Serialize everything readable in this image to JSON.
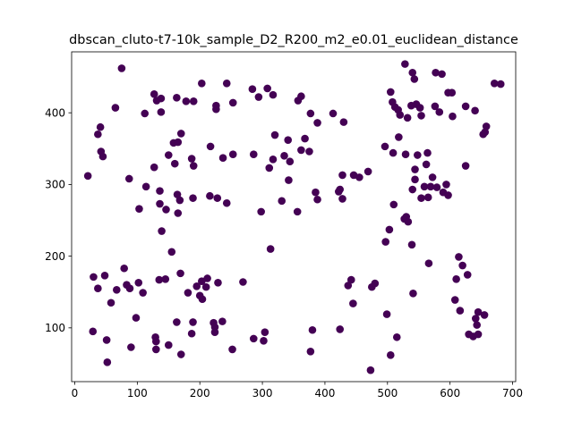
{
  "chart_data": {
    "type": "scatter",
    "title": "dbscan_cluto-t7-10k_sample_D2_R200_m2_e0.01_euclidean_distance",
    "xlabel": "",
    "ylabel": "",
    "xlim": [
      -5,
      705
    ],
    "ylim": [
      25,
      485
    ],
    "xticks": [
      0,
      100,
      200,
      300,
      400,
      500,
      600,
      700
    ],
    "yticks": [
      100,
      200,
      300,
      400
    ],
    "xtick_labels": [
      "0",
      "100",
      "200",
      "300",
      "400",
      "500",
      "600",
      "700"
    ],
    "ytick_labels": [
      "100",
      "200",
      "300",
      "400"
    ],
    "grid": false,
    "legend": "none",
    "marker_color": "#440154",
    "points": [
      [
        75,
        462
      ],
      [
        65,
        407
      ],
      [
        127,
        426
      ],
      [
        131,
        417
      ],
      [
        138,
        420
      ],
      [
        138,
        401
      ],
      [
        112,
        399
      ],
      [
        163,
        421
      ],
      [
        178,
        416
      ],
      [
        190,
        416
      ],
      [
        203,
        441
      ],
      [
        226,
        410
      ],
      [
        226,
        405
      ],
      [
        243,
        441
      ],
      [
        253,
        414
      ],
      [
        284,
        433
      ],
      [
        294,
        422
      ],
      [
        308,
        434
      ],
      [
        317,
        425
      ],
      [
        357,
        417
      ],
      [
        362,
        423
      ],
      [
        377,
        399
      ],
      [
        388,
        386
      ],
      [
        413,
        399
      ],
      [
        430,
        387
      ],
      [
        41,
        380
      ],
      [
        37,
        370
      ],
      [
        42,
        346
      ],
      [
        45,
        339
      ],
      [
        87,
        308
      ],
      [
        21,
        312
      ],
      [
        114,
        297
      ],
      [
        127,
        324
      ],
      [
        136,
        291
      ],
      [
        136,
        273
      ],
      [
        146,
        265
      ],
      [
        150,
        341
      ],
      [
        158,
        358
      ],
      [
        160,
        329
      ],
      [
        165,
        359
      ],
      [
        164,
        286
      ],
      [
        170,
        371
      ],
      [
        168,
        278
      ],
      [
        165,
        260
      ],
      [
        187,
        336
      ],
      [
        190,
        326
      ],
      [
        189,
        281
      ],
      [
        217,
        353
      ],
      [
        216,
        284
      ],
      [
        228,
        281
      ],
      [
        237,
        337
      ],
      [
        243,
        274
      ],
      [
        253,
        342
      ],
      [
        286,
        342
      ],
      [
        311,
        323
      ],
      [
        317,
        335
      ],
      [
        320,
        369
      ],
      [
        331,
        277
      ],
      [
        335,
        340
      ],
      [
        341,
        362
      ],
      [
        344,
        332
      ],
      [
        342,
        306
      ],
      [
        356,
        262
      ],
      [
        362,
        348
      ],
      [
        368,
        364
      ],
      [
        375,
        346
      ],
      [
        385,
        289
      ],
      [
        388,
        279
      ],
      [
        298,
        262
      ],
      [
        313,
        210
      ],
      [
        103,
        266
      ],
      [
        139,
        235
      ],
      [
        155,
        206
      ],
      [
        422,
        290
      ],
      [
        424,
        293
      ],
      [
        428,
        313
      ],
      [
        428,
        280
      ],
      [
        446,
        313
      ],
      [
        455,
        310
      ],
      [
        469,
        318
      ],
      [
        528,
        468
      ],
      [
        540,
        456
      ],
      [
        543,
        447
      ],
      [
        505,
        429
      ],
      [
        508,
        415
      ],
      [
        512,
        408
      ],
      [
        517,
        404
      ],
      [
        520,
        397
      ],
      [
        532,
        393
      ],
      [
        538,
        410
      ],
      [
        546,
        412
      ],
      [
        552,
        407
      ],
      [
        554,
        396
      ],
      [
        577,
        456
      ],
      [
        587,
        454
      ],
      [
        576,
        409
      ],
      [
        583,
        401
      ],
      [
        597,
        428
      ],
      [
        603,
        428
      ],
      [
        604,
        395
      ],
      [
        625,
        409
      ],
      [
        640,
        403
      ],
      [
        653,
        370
      ],
      [
        656,
        373
      ],
      [
        658,
        381
      ],
      [
        671,
        441
      ],
      [
        681,
        440
      ],
      [
        496,
        353
      ],
      [
        518,
        366
      ],
      [
        509,
        344
      ],
      [
        529,
        342
      ],
      [
        548,
        341
      ],
      [
        564,
        344
      ],
      [
        562,
        328
      ],
      [
        544,
        321
      ],
      [
        544,
        307
      ],
      [
        559,
        297
      ],
      [
        569,
        297
      ],
      [
        572,
        310
      ],
      [
        579,
        296
      ],
      [
        589,
        289
      ],
      [
        594,
        300
      ],
      [
        597,
        285
      ],
      [
        565,
        282
      ],
      [
        554,
        281
      ],
      [
        540,
        293
      ],
      [
        510,
        272
      ],
      [
        527,
        252
      ],
      [
        530,
        255
      ],
      [
        533,
        248
      ],
      [
        539,
        216
      ],
      [
        503,
        237
      ],
      [
        497,
        220
      ],
      [
        566,
        190
      ],
      [
        625,
        326
      ],
      [
        30,
        171
      ],
      [
        37,
        155
      ],
      [
        48,
        173
      ],
      [
        29,
        95
      ],
      [
        51,
        83
      ],
      [
        52,
        52
      ],
      [
        58,
        135
      ],
      [
        67,
        153
      ],
      [
        79,
        183
      ],
      [
        83,
        160
      ],
      [
        88,
        155
      ],
      [
        90,
        73
      ],
      [
        98,
        114
      ],
      [
        102,
        163
      ],
      [
        109,
        149
      ],
      [
        129,
        87
      ],
      [
        130,
        81
      ],
      [
        130,
        70
      ],
      [
        135,
        167
      ],
      [
        145,
        168
      ],
      [
        150,
        76
      ],
      [
        163,
        108
      ],
      [
        169,
        176
      ],
      [
        170,
        63
      ],
      [
        181,
        149
      ],
      [
        187,
        92
      ],
      [
        189,
        108
      ],
      [
        195,
        158
      ],
      [
        200,
        145
      ],
      [
        203,
        165
      ],
      [
        204,
        140
      ],
      [
        210,
        157
      ],
      [
        212,
        169
      ],
      [
        222,
        107
      ],
      [
        224,
        101
      ],
      [
        224,
        94
      ],
      [
        229,
        163
      ],
      [
        236,
        109
      ],
      [
        252,
        70
      ],
      [
        269,
        164
      ],
      [
        286,
        85
      ],
      [
        302,
        82
      ],
      [
        304,
        94
      ],
      [
        377,
        67
      ],
      [
        380,
        97
      ],
      [
        424,
        98
      ],
      [
        437,
        159
      ],
      [
        442,
        167
      ],
      [
        445,
        134
      ],
      [
        473,
        41
      ],
      [
        475,
        157
      ],
      [
        480,
        162
      ],
      [
        499,
        119
      ],
      [
        505,
        62
      ],
      [
        515,
        87
      ],
      [
        541,
        148
      ],
      [
        614,
        199
      ],
      [
        620,
        187
      ],
      [
        628,
        174
      ],
      [
        610,
        168
      ],
      [
        608,
        139
      ],
      [
        616,
        124
      ],
      [
        630,
        91
      ],
      [
        637,
        88
      ],
      [
        641,
        113
      ],
      [
        643,
        104
      ],
      [
        645,
        91
      ],
      [
        645,
        122
      ],
      [
        655,
        118
      ]
    ]
  }
}
